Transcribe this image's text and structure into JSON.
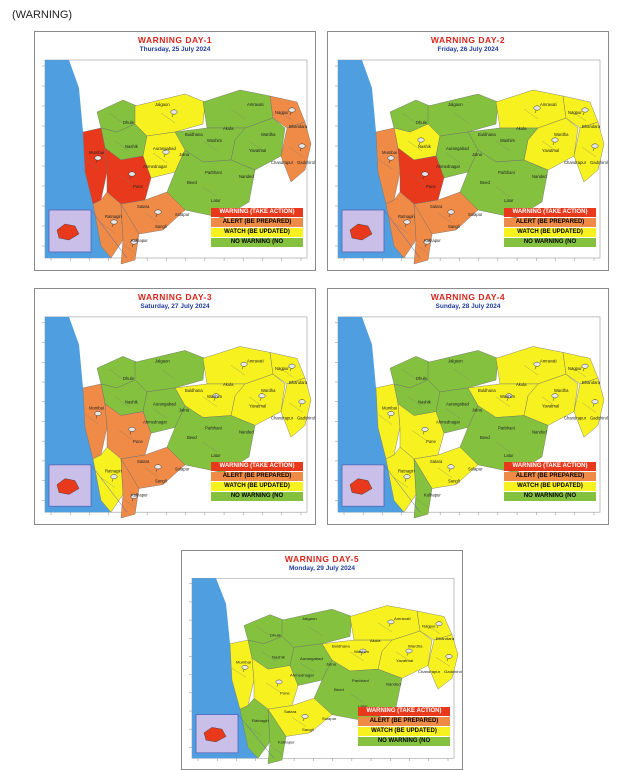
{
  "page_label": "(WARNING)",
  "colors": {
    "sea": "#4f9fe0",
    "land_outside": "#ffffff",
    "red": "#e8391d",
    "orange": "#ef8a47",
    "yellow": "#f7f21f",
    "green": "#83c13f",
    "inset": "#c9bfe8"
  },
  "legend": [
    {
      "label": "WARNING (TAKE ACTION)",
      "color": "#e8391d"
    },
    {
      "label": "ALERT (BE PREPARED)",
      "color": "#ef8a47"
    },
    {
      "label": "WATCH (BE UPDATED)",
      "color": "#f7f21f"
    },
    {
      "label": "NO WARNING (NO",
      "color": "#83c13f"
    }
  ],
  "district_labels": [
    "Jalgaon",
    "Amravati",
    "Nagpur",
    "Dhule",
    "Nashik",
    "Akola",
    "Wardha",
    "Bhandara",
    "Aurangabad",
    "Jalna",
    "Yavatmal",
    "Chandrapur",
    "Ahmednagar",
    "Mumbai",
    "Pune",
    "Beed",
    "Latur",
    "Satara",
    "Solapur",
    "Sangli",
    "Kolhapur",
    "Ratnagiri",
    "Nanded",
    "Parbhani",
    "Washim",
    "Buldhana",
    "Gadchiroli"
  ],
  "days": [
    {
      "title": "WARNING  DAY-1",
      "date": "Thursday,  25 July 2024",
      "zones": {
        "konkan": "red",
        "ghat": "red",
        "ghat_south": "orange",
        "south_coast": "orange",
        "kolhapur": "orange",
        "north_maha": "yellow",
        "nashik": "green",
        "nandurbar": "green",
        "marathwada": "green",
        "vidarbha_w": "green",
        "vidarbha_c": "green",
        "vidarbha_e": "orange",
        "gadchiroli": "orange",
        "aurangabad": "yellow",
        "amravati": "green"
      }
    },
    {
      "title": "WARNING  DAY-2",
      "date": "Friday,  26 July 2024",
      "zones": {
        "konkan": "orange",
        "ghat": "red",
        "ghat_south": "orange",
        "south_coast": "orange",
        "kolhapur": "orange",
        "north_maha": "green",
        "nashik": "yellow",
        "nandurbar": "green",
        "marathwada": "green",
        "vidarbha_w": "green",
        "vidarbha_c": "yellow",
        "vidarbha_e": "yellow",
        "gadchiroli": "yellow",
        "aurangabad": "green",
        "amravati": "yellow"
      }
    },
    {
      "title": "WARNING  DAY-3",
      "date": "Saturday,  27 July 2024",
      "zones": {
        "konkan": "orange",
        "ghat": "orange",
        "ghat_south": "orange",
        "south_coast": "yellow",
        "kolhapur": "orange",
        "north_maha": "green",
        "nashik": "green",
        "nandurbar": "green",
        "marathwada": "green",
        "vidarbha_w": "yellow",
        "vidarbha_c": "yellow",
        "vidarbha_e": "yellow",
        "gadchiroli": "yellow",
        "aurangabad": "green",
        "amravati": "yellow"
      }
    },
    {
      "title": "WARNING  DAY-4",
      "date": "Sunday,  28 July 2024",
      "zones": {
        "konkan": "yellow",
        "ghat": "yellow",
        "ghat_south": "yellow",
        "south_coast": "yellow",
        "kolhapur": "green",
        "north_maha": "green",
        "nashik": "green",
        "nandurbar": "green",
        "marathwada": "green",
        "vidarbha_w": "yellow",
        "vidarbha_c": "yellow",
        "vidarbha_e": "yellow",
        "gadchiroli": "yellow",
        "aurangabad": "green",
        "amravati": "yellow"
      }
    },
    {
      "title": "WARNING  DAY-5",
      "date": "Monday,  29 July 2024",
      "zones": {
        "konkan": "yellow",
        "ghat": "yellow",
        "ghat_south": "yellow",
        "south_coast": "green",
        "kolhapur": "green",
        "north_maha": "green",
        "nashik": "green",
        "nandurbar": "green",
        "marathwada": "green",
        "vidarbha_w": "yellow",
        "vidarbha_c": "yellow",
        "vidarbha_e": "yellow",
        "gadchiroli": "yellow",
        "aurangabad": "green",
        "amravati": "yellow"
      }
    }
  ]
}
